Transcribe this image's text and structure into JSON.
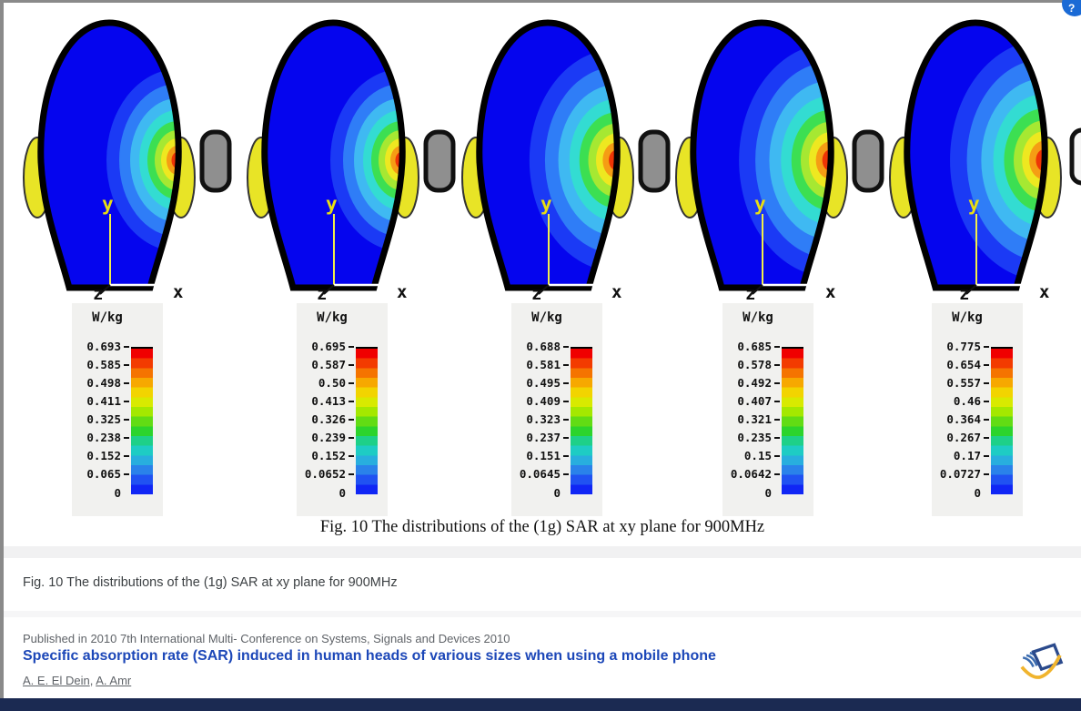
{
  "ui": {
    "top_right_button": {
      "glyph": "?",
      "color": "#1a6ad5"
    },
    "bottom_bar_color": "#1b2a52"
  },
  "figure": {
    "unit_label": "W/kg",
    "caption": "Fig. 10 The distributions of the (1g) SAR at xy plane for 900MHz",
    "head_fill": "#0505ee",
    "ear_color": "#e8e426",
    "outline_color": "#000000",
    "axis": {
      "x_label": "x",
      "y_label": "y",
      "z_label": "z"
    },
    "colorbar_colors": [
      "#f00000",
      "#f33b00",
      "#f57400",
      "#f7a800",
      "#f2d400",
      "#d8ea00",
      "#a4e800",
      "#62dc14",
      "#2cd42c",
      "#1ed088",
      "#1eccc4",
      "#28aede",
      "#2a82ea",
      "#2052f2",
      "#1026f5"
    ],
    "hotspot_colors": [
      "#1b3af5",
      "#2f7df7",
      "#3fb9f2",
      "#33dcd2",
      "#3cdf52",
      "#a6e832",
      "#eee820",
      "#f59d14",
      "#ee3505"
    ],
    "panels": [
      {
        "ticks": [
          "0.693",
          "0.585",
          "0.498",
          "0.411",
          "0.325",
          "0.238",
          "0.152",
          "0.065"
        ],
        "zero": "0",
        "phone_fill": "#8f8f8f",
        "antenna": false,
        "hotspot_scale": 1.0
      },
      {
        "ticks": [
          "0.695",
          "0.587",
          "0.50",
          "0.413",
          "0.326",
          "0.239",
          "0.152",
          "0.0652"
        ],
        "zero": "0",
        "phone_fill": "#8f8f8f",
        "antenna": false,
        "hotspot_scale": 1.0
      },
      {
        "ticks": [
          "0.688",
          "0.581",
          "0.495",
          "0.409",
          "0.323",
          "0.237",
          "0.151",
          "0.0645"
        ],
        "zero": "0",
        "phone_fill": "#8f8f8f",
        "antenna": false,
        "hotspot_scale": 1.22
      },
      {
        "ticks": [
          "0.685",
          "0.578",
          "0.492",
          "0.407",
          "0.321",
          "0.235",
          "0.15",
          "0.0642"
        ],
        "zero": "0",
        "phone_fill": "#8f8f8f",
        "antenna": false,
        "hotspot_scale": 1.28
      },
      {
        "ticks": [
          "0.775",
          "0.654",
          "0.557",
          "0.46",
          "0.364",
          "0.267",
          "0.17",
          "0.0727"
        ],
        "zero": "0",
        "phone_fill": "#f6f6f6",
        "antenna": true,
        "hotspot_scale": 1.32
      }
    ]
  },
  "details": {
    "caption": "Fig. 10 The distributions of the (1g) SAR at xy plane for 900MHz",
    "published_in": "Published in 2010 7th International Multi- Conference on Systems, Signals and Devices 2010",
    "paper_title": "Specific absorption rate (SAR) induced in human heads of various sizes when using a mobile phone",
    "title_color": "#1c47b8",
    "authors": [
      "A. E. El Dein",
      "A. Amr"
    ],
    "authors_separator": ", "
  }
}
